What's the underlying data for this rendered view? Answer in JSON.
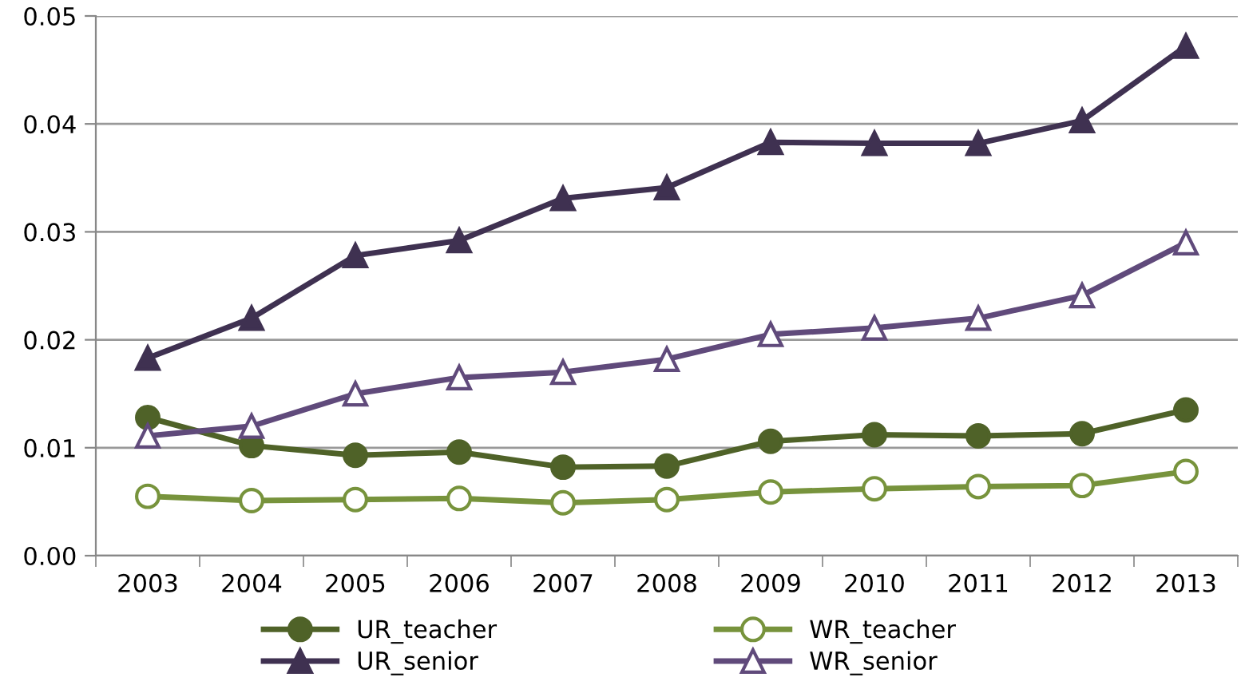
{
  "chart_data": {
    "type": "line",
    "categories": [
      "2003",
      "2004",
      "2005",
      "2006",
      "2007",
      "2008",
      "2009",
      "2010",
      "2011",
      "2012",
      "2013"
    ],
    "series": [
      {
        "name": "UR_teacher",
        "color": "#4f6228",
        "marker": "circle",
        "values": [
          0.0128,
          0.0102,
          0.0093,
          0.0096,
          0.0082,
          0.0083,
          0.0106,
          0.0112,
          0.0111,
          0.0113,
          0.0135
        ]
      },
      {
        "name": "WR_teacher",
        "color": "#77933c",
        "marker": "circle",
        "values": [
          0.0055,
          0.0051,
          0.0052,
          0.0053,
          0.0049,
          0.0052,
          0.0059,
          0.0062,
          0.0064,
          0.0065,
          0.0078
        ]
      },
      {
        "name": "UR_senior",
        "color": "#3f3151",
        "marker": "triangle",
        "values": [
          0.0183,
          0.022,
          0.0278,
          0.0292,
          0.0331,
          0.0341,
          0.0383,
          0.0382,
          0.0382,
          0.0403,
          0.0472
        ]
      },
      {
        "name": "WR_senior",
        "color": "#604a7b",
        "marker": "triangle",
        "values": [
          0.0111,
          0.012,
          0.015,
          0.0165,
          0.017,
          0.0182,
          0.0205,
          0.0211,
          0.022,
          0.0241,
          0.029
        ]
      }
    ],
    "ylim": [
      0,
      0.05
    ],
    "yticks": [
      {
        "value": 0,
        "label": "0.00"
      },
      {
        "value": 0.01,
        "label": "0.01"
      },
      {
        "value": 0.02,
        "label": "0.02"
      },
      {
        "value": 0.03,
        "label": "0.03"
      },
      {
        "value": 0.04,
        "label": "0.04"
      },
      {
        "value": 0.05,
        "label": "0.05"
      }
    ],
    "grid": "y",
    "legend": "bottom",
    "line_style": "solid"
  }
}
